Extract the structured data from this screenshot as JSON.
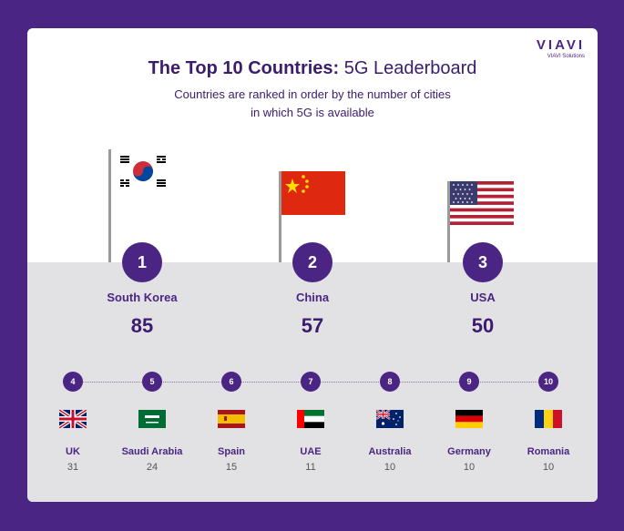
{
  "brand": {
    "logo": "VIAVI",
    "tagline": "VIAVI Solutions"
  },
  "title_bold": "The Top 10 Countries:",
  "title_light": "5G Leaderboard",
  "subtitle_line1": "Countries are ranked in order by the number of cities",
  "subtitle_line2": "in which 5G is available",
  "colors": {
    "background": "#4b2583",
    "card": "#ffffff",
    "band": "#e2e2e5",
    "accent": "#4b2583"
  },
  "chart_data": {
    "type": "table",
    "columns": [
      "rank",
      "country",
      "cities"
    ],
    "rows": [
      {
        "rank": "1",
        "country": "South Korea",
        "cities": "85",
        "flag": "south-korea-flag"
      },
      {
        "rank": "2",
        "country": "China",
        "cities": "57",
        "flag": "china-flag"
      },
      {
        "rank": "3",
        "country": "USA",
        "cities": "50",
        "flag": "usa-flag"
      },
      {
        "rank": "4",
        "country": "UK",
        "cities": "31",
        "flag": "uk-flag"
      },
      {
        "rank": "5",
        "country": "Saudi Arabia",
        "cities": "24",
        "flag": "saudi-arabia-flag"
      },
      {
        "rank": "6",
        "country": "Spain",
        "cities": "15",
        "flag": "spain-flag"
      },
      {
        "rank": "7",
        "country": "UAE",
        "cities": "11",
        "flag": "uae-flag"
      },
      {
        "rank": "8",
        "country": "Australia",
        "cities": "10",
        "flag": "australia-flag"
      },
      {
        "rank": "9",
        "country": "Germany",
        "cities": "10",
        "flag": "germany-flag"
      },
      {
        "rank": "10",
        "country": "Romania",
        "cities": "10",
        "flag": "romania-flag"
      }
    ]
  }
}
